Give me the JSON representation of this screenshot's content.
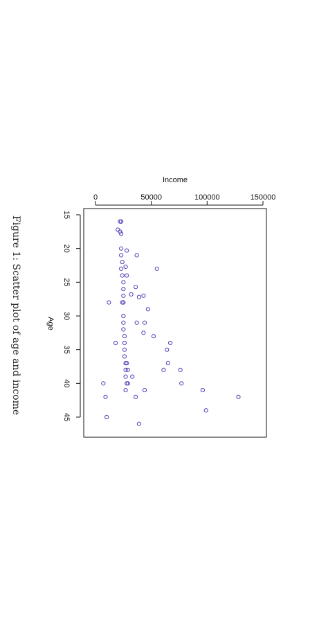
{
  "chart_data": {
    "type": "scatter",
    "caption": "Figure 1: Scatter plot of age and income",
    "xlabel": "Income",
    "ylabel": "Age",
    "xlim": [
      -10000,
      150000
    ],
    "ylim": [
      15,
      48
    ],
    "x_ticks": [
      0,
      50000,
      100000,
      150000
    ],
    "x_tick_labels": [
      "0",
      "50000",
      "100000",
      "150000"
    ],
    "y_ticks": [
      15,
      20,
      25,
      30,
      35,
      40,
      45
    ],
    "y_tick_labels": [
      "15",
      "20",
      "25",
      "30",
      "35",
      "40",
      "45"
    ],
    "grid": false,
    "legend": "none",
    "point_color": "#4b3fb5",
    "series": [
      {
        "points": [
          [
            22000,
            16
          ],
          [
            23000,
            16
          ],
          [
            20000,
            17.2
          ],
          [
            22000,
            17.5
          ],
          [
            23000,
            17.8
          ],
          [
            23000,
            20
          ],
          [
            28000,
            20.3
          ],
          [
            23000,
            21
          ],
          [
            37000,
            21
          ],
          [
            24000,
            22
          ],
          [
            23000,
            23
          ],
          [
            27000,
            22.7
          ],
          [
            55000,
            23
          ],
          [
            24000,
            24
          ],
          [
            28000,
            24
          ],
          [
            25000,
            25
          ],
          [
            36000,
            25.7
          ],
          [
            25000,
            26
          ],
          [
            25000,
            27
          ],
          [
            32000,
            26.8
          ],
          [
            39000,
            27.2
          ],
          [
            43000,
            27
          ],
          [
            12000,
            28
          ],
          [
            24000,
            28
          ],
          [
            25000,
            28
          ],
          [
            47000,
            29
          ],
          [
            25000,
            30
          ],
          [
            25000,
            31
          ],
          [
            37000,
            31
          ],
          [
            44000,
            31
          ],
          [
            25000,
            32
          ],
          [
            43000,
            32.5
          ],
          [
            26000,
            33
          ],
          [
            52000,
            33
          ],
          [
            18000,
            34
          ],
          [
            26000,
            34
          ],
          [
            67000,
            34
          ],
          [
            26000,
            35
          ],
          [
            64000,
            35
          ],
          [
            26000,
            36
          ],
          [
            27000,
            37
          ],
          [
            28000,
            37
          ],
          [
            65000,
            37
          ],
          [
            29000,
            38
          ],
          [
            27000,
            38
          ],
          [
            61000,
            38
          ],
          [
            76000,
            38
          ],
          [
            27000,
            39
          ],
          [
            33000,
            39
          ],
          [
            28000,
            40
          ],
          [
            29000,
            40
          ],
          [
            7000,
            40
          ],
          [
            77000,
            40
          ],
          [
            27000,
            41
          ],
          [
            44000,
            41
          ],
          [
            96000,
            41
          ],
          [
            9000,
            42
          ],
          [
            36000,
            42
          ],
          [
            128000,
            42
          ],
          [
            99000,
            44
          ],
          [
            10000,
            45
          ],
          [
            39000,
            46
          ]
        ]
      }
    ]
  }
}
